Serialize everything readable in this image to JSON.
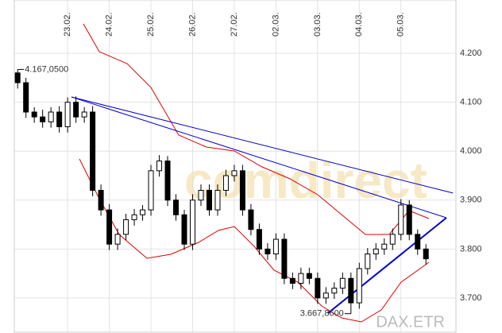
{
  "chart_data": {
    "type": "candlestick",
    "instrument": "DAX.ETR",
    "watermark": "comdirect",
    "open": [
      4160,
      4140,
      4080,
      4070,
      4060,
      4080,
      4050,
      4100,
      4070,
      4080,
      3920,
      3880,
      3810,
      3830,
      3860,
      3870,
      3880,
      3960,
      3980,
      3900,
      3870,
      3810,
      3900,
      3920,
      3880,
      3920,
      3950,
      3960,
      3880,
      3840,
      3800,
      3790,
      3820,
      3740,
      3730,
      3750,
      3740,
      3700,
      3710,
      3720,
      3740,
      3690,
      3760,
      3790,
      3800,
      3810,
      3830,
      3890,
      3830,
      3800
    ],
    "high": [
      4167,
      4150,
      4090,
      4085,
      4090,
      4092,
      4110,
      4112,
      4090,
      4092,
      3932,
      3892,
      3842,
      3872,
      3882,
      3890,
      3972,
      3992,
      3990,
      3912,
      3880,
      3912,
      3932,
      3932,
      3932,
      3962,
      3972,
      3972,
      3892,
      3852,
      3812,
      3832,
      3832,
      3752,
      3762,
      3762,
      3752,
      3722,
      3732,
      3752,
      3752,
      3772,
      3802,
      3812,
      3822,
      3842,
      3902,
      3900,
      3840,
      3810
    ],
    "low": [
      4128,
      4068,
      4058,
      4048,
      4048,
      4038,
      4038,
      4058,
      4058,
      3908,
      3868,
      3798,
      3798,
      3818,
      3848,
      3858,
      3868,
      3948,
      3888,
      3858,
      3798,
      3798,
      3888,
      3868,
      3868,
      3908,
      3938,
      3868,
      3828,
      3788,
      3778,
      3778,
      3728,
      3718,
      3718,
      3728,
      3688,
      3688,
      3698,
      3708,
      3668,
      3678,
      3748,
      3778,
      3788,
      3798,
      3818,
      3818,
      3788,
      3768
    ],
    "close": [
      4140,
      4080,
      4070,
      4060,
      4080,
      4050,
      4100,
      4070,
      4080,
      3920,
      3880,
      3810,
      3830,
      3860,
      3870,
      3880,
      3960,
      3980,
      3900,
      3870,
      3810,
      3900,
      3920,
      3880,
      3920,
      3950,
      3960,
      3880,
      3840,
      3800,
      3790,
      3820,
      3740,
      3730,
      3750,
      3740,
      3700,
      3710,
      3720,
      3740,
      3690,
      3760,
      3790,
      3800,
      3810,
      3830,
      3890,
      3830,
      3800,
      3780
    ],
    "xlim": [
      -0.4,
      52.6
    ],
    "xticks": [
      {
        "value": 6,
        "label": "23.02."
      },
      {
        "value": 11,
        "label": "24.02."
      },
      {
        "value": 16,
        "label": "25.02."
      },
      {
        "value": 21,
        "label": "26.02."
      },
      {
        "value": 26,
        "label": "27.02."
      },
      {
        "value": 31,
        "label": "02.03."
      },
      {
        "value": 36,
        "label": "03.03."
      },
      {
        "value": 41,
        "label": "04.03."
      },
      {
        "value": 46,
        "label": "05.03."
      }
    ],
    "ylim": [
      3630,
      4309
    ],
    "yticks": [
      {
        "value": 3700,
        "label": "3.700"
      },
      {
        "value": 3800,
        "label": "3.800"
      },
      {
        "value": 3900,
        "label": "3.900"
      },
      {
        "value": 4000,
        "label": "4.000"
      },
      {
        "value": 4100,
        "label": "4.100"
      },
      {
        "value": 4200,
        "label": "4.200"
      }
    ],
    "annotations": [
      {
        "text": "4.167,0500",
        "value": 4167.05
      },
      {
        "text": "3.667,8600",
        "value": 3667.86
      }
    ],
    "grid": true
  }
}
